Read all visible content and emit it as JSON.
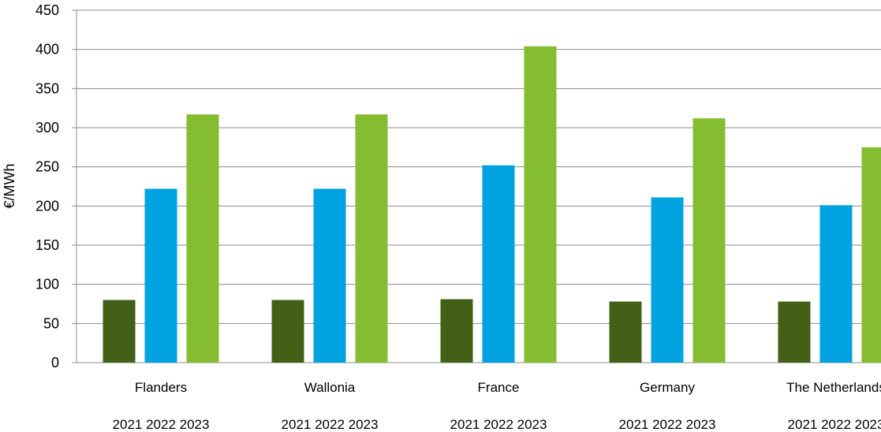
{
  "chart_data": {
    "type": "bar",
    "title": "",
    "xlabel": "",
    "ylabel": "€/MWh",
    "ylim": [
      0,
      450
    ],
    "yticks": [
      0,
      50,
      100,
      150,
      200,
      250,
      300,
      350,
      400,
      450
    ],
    "grid": true,
    "legend": "none",
    "categories": [
      "Flanders",
      "Wallonia",
      "France",
      "Germany",
      "The Netherlands"
    ],
    "series": [
      {
        "year_label": "2021",
        "color": "#426016",
        "values": [
          80,
          80,
          81,
          78,
          78
        ]
      },
      {
        "year_label": "2022",
        "color": "#00A3E0",
        "values": [
          222,
          222,
          252,
          211,
          201
        ]
      },
      {
        "year_label": "2023",
        "color": "#84BD2F",
        "values": [
          317,
          317,
          404,
          312,
          275
        ]
      }
    ]
  }
}
